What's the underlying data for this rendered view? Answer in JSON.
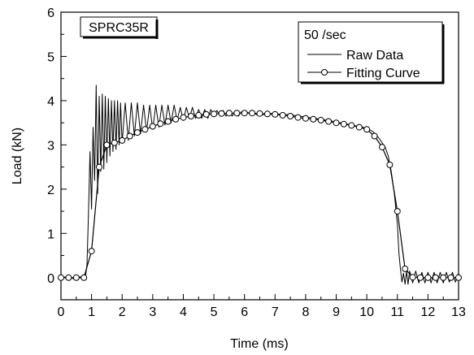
{
  "chart_data": {
    "type": "line",
    "title": "",
    "xlabel": "Time (ms)",
    "ylabel": "Load (kN)",
    "xlim": [
      0,
      13
    ],
    "ylim": [
      -0.5,
      6
    ],
    "xticks": [
      "0",
      "1",
      "2",
      "3",
      "4",
      "5",
      "6",
      "7",
      "8",
      "9",
      "10",
      "11",
      "12",
      "13"
    ],
    "yticks": [
      "0",
      "1",
      "2",
      "3",
      "4",
      "5",
      "6"
    ],
    "grid": false,
    "specimen_label": "SPRC35R",
    "legend": {
      "placement": "top-right",
      "header": "50 /sec",
      "entries": [
        "Raw Data",
        "Fitting Curve"
      ]
    },
    "series": [
      {
        "name": "Raw Data",
        "style": "line",
        "color": "#000000",
        "x": [
          0,
          0.2,
          0.4,
          0.6,
          0.8,
          0.85,
          0.9,
          0.95,
          1.0,
          1.05,
          1.1,
          1.15,
          1.2,
          1.25,
          1.3,
          1.35,
          1.4,
          1.45,
          1.5,
          1.55,
          1.6,
          1.65,
          1.7,
          1.75,
          1.8,
          1.85,
          1.9,
          1.95,
          2.0,
          2.1,
          2.2,
          2.3,
          2.4,
          2.5,
          2.6,
          2.7,
          2.8,
          2.9,
          3.0,
          3.1,
          3.2,
          3.3,
          3.4,
          3.5,
          3.6,
          3.7,
          3.8,
          3.9,
          4.0,
          4.1,
          4.2,
          4.3,
          4.4,
          4.5,
          4.6,
          4.7,
          4.8,
          4.9,
          5.0,
          5.1,
          5.2,
          5.3,
          5.4,
          5.5,
          5.6,
          5.7,
          5.8,
          5.9,
          6.0,
          6.1,
          6.2,
          6.3,
          6.4,
          6.5,
          6.6,
          6.7,
          6.8,
          6.9,
          7.0,
          7.5,
          8.0,
          8.5,
          9.0,
          9.5,
          10.0,
          10.2,
          10.4,
          10.6,
          10.7,
          10.8,
          10.9,
          11.0,
          11.05,
          11.1,
          11.15,
          11.2,
          11.25,
          11.3,
          11.35,
          11.4,
          11.5,
          11.6,
          11.7,
          11.8,
          11.9,
          12.0,
          12.1,
          12.2,
          12.3,
          12.4,
          12.5,
          12.6,
          12.7,
          12.8,
          12.9,
          13.0
        ],
        "y": [
          0,
          0.02,
          -0.02,
          0.02,
          0,
          0.3,
          1.5,
          2.85,
          1.55,
          3.4,
          2.2,
          4.35,
          1.9,
          4.1,
          2.4,
          4.15,
          2.45,
          4.1,
          2.6,
          4.05,
          2.75,
          4.0,
          2.85,
          4.0,
          2.9,
          4.0,
          3.0,
          3.95,
          3.05,
          3.95,
          3.1,
          3.95,
          3.2,
          3.95,
          3.25,
          3.9,
          3.3,
          3.9,
          3.35,
          3.9,
          3.4,
          3.9,
          3.45,
          3.9,
          3.5,
          3.9,
          3.55,
          3.85,
          3.55,
          3.85,
          3.6,
          3.85,
          3.6,
          3.8,
          3.6,
          3.8,
          3.6,
          3.8,
          3.65,
          3.78,
          3.65,
          3.78,
          3.65,
          3.76,
          3.65,
          3.76,
          3.65,
          3.75,
          3.68,
          3.74,
          3.68,
          3.73,
          3.68,
          3.72,
          3.68,
          3.72,
          3.7,
          3.71,
          3.7,
          3.68,
          3.63,
          3.58,
          3.52,
          3.45,
          3.38,
          3.3,
          3.15,
          2.95,
          2.75,
          2.4,
          1.9,
          1.2,
          0.55,
          0.2,
          -0.1,
          0.1,
          -0.15,
          0.15,
          -0.15,
          0.15,
          -0.12,
          0.15,
          -0.12,
          0.12,
          -0.12,
          0.12,
          -0.12,
          0.12,
          -0.12,
          0.12,
          -0.12,
          0.12,
          -0.1,
          0.12,
          -0.1,
          0.1
        ]
      },
      {
        "name": "Fitting Curve",
        "style": "line-circle",
        "color": "#000000",
        "x": [
          0,
          0.25,
          0.5,
          0.75,
          1.0,
          1.25,
          1.5,
          1.75,
          2.0,
          2.25,
          2.5,
          2.75,
          3.0,
          3.25,
          3.5,
          3.75,
          4.0,
          4.25,
          4.5,
          4.75,
          5.0,
          5.25,
          5.5,
          5.75,
          6.0,
          6.25,
          6.5,
          6.75,
          7.0,
          7.25,
          7.5,
          7.75,
          8.0,
          8.25,
          8.5,
          8.75,
          9.0,
          9.25,
          9.5,
          9.75,
          10.0,
          10.25,
          10.5,
          10.75,
          11.0,
          11.25,
          11.5,
          11.75,
          12.0,
          12.25,
          12.5,
          12.75,
          13.0
        ],
        "y": [
          0,
          0,
          0,
          0,
          0.6,
          2.5,
          3.0,
          3.05,
          3.1,
          3.2,
          3.28,
          3.35,
          3.42,
          3.48,
          3.53,
          3.58,
          3.62,
          3.65,
          3.67,
          3.69,
          3.7,
          3.71,
          3.72,
          3.72,
          3.72,
          3.72,
          3.71,
          3.7,
          3.69,
          3.67,
          3.65,
          3.62,
          3.6,
          3.58,
          3.56,
          3.53,
          3.5,
          3.47,
          3.44,
          3.4,
          3.35,
          3.2,
          2.95,
          2.55,
          1.5,
          0.2,
          0.01,
          0,
          0,
          0,
          0,
          0,
          0
        ]
      }
    ]
  }
}
